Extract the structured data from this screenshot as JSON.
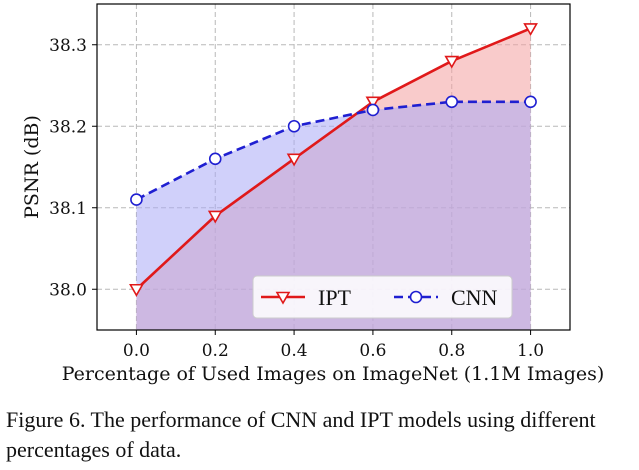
{
  "chart_data": {
    "type": "line",
    "x": [
      0.0,
      0.2,
      0.4,
      0.6,
      0.8,
      1.0
    ],
    "series": [
      {
        "name": "IPT",
        "values": [
          38.0,
          38.09,
          38.16,
          38.23,
          38.28,
          38.32
        ],
        "color": "#e0191a",
        "fill": "#f4a0a0",
        "marker": "triangle-down",
        "linestyle": "solid"
      },
      {
        "name": "CNN",
        "values": [
          38.11,
          38.16,
          38.2,
          38.22,
          38.23,
          38.23
        ],
        "color": "#1f1fd1",
        "fill": "#a9a9f5",
        "marker": "circle",
        "linestyle": "dashed"
      }
    ],
    "xlabel": "Percentage of Used Images on ImageNet (1.1M Images)",
    "ylabel": "PSNR (dB)",
    "xticks": [
      "0.0",
      "0.2",
      "0.4",
      "0.6",
      "0.8",
      "1.0"
    ],
    "yticks": [
      "38.0",
      "38.1",
      "38.2",
      "38.3"
    ],
    "xlim": [
      -0.1,
      1.1
    ],
    "ylim": [
      37.95,
      38.35
    ],
    "grid": true,
    "legend_position": "lower-right"
  },
  "caption": "Figure 6. The performance of CNN and IPT models using different percentages of data."
}
